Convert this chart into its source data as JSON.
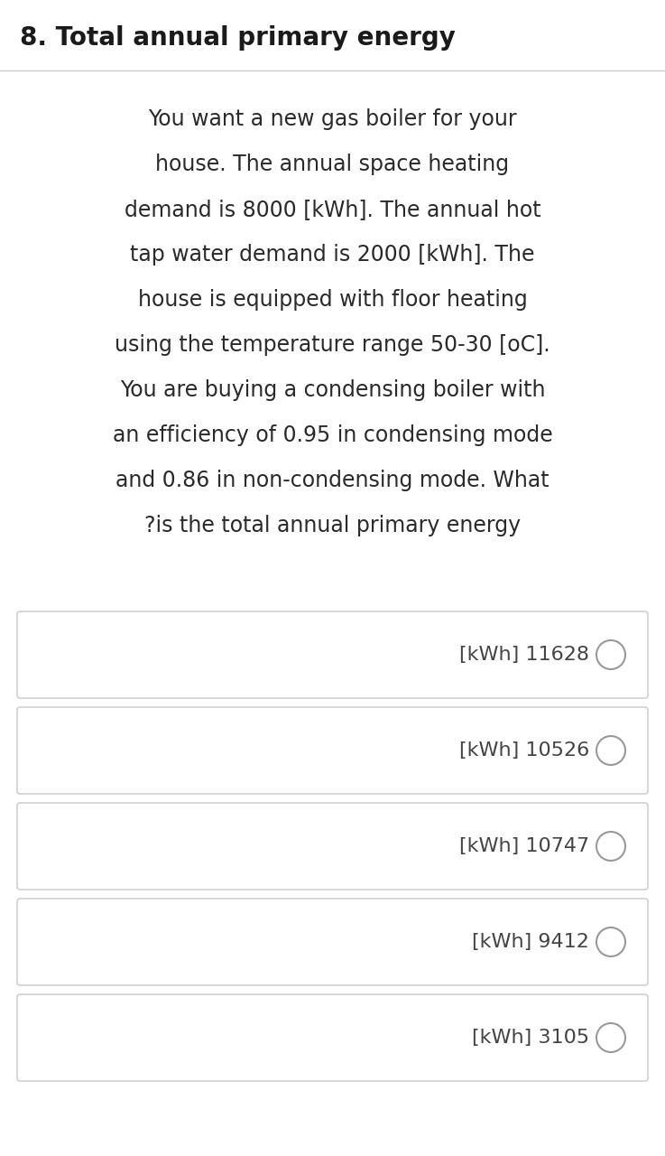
{
  "title": "8. Total annual primary energy",
  "question_lines": [
    "You want a new gas boiler for your",
    "house. The annual space heating",
    "demand is 8000 [kWh]. The annual hot",
    "tap water demand is 2000 [kWh]. The",
    "house is equipped with floor heating",
    "using the temperature range 50-30 [oC].",
    "You are buying a condensing boiler with",
    "an efficiency of 0.95 in condensing mode",
    "and 0.86 in non-condensing mode. What",
    "?is the total annual primary energy"
  ],
  "options": [
    "[kWh] 11628",
    "[kWh] 10526",
    "[kWh] 10747",
    "[kWh] 9412",
    "[kWh] 3105"
  ],
  "bg_color": "#ffffff",
  "title_color": "#1a1a1a",
  "text_color": "#2a2a2a",
  "option_bg": "#ffffff",
  "option_border": "#c8c8c8",
  "option_text_color": "#444444",
  "circle_color": "#999999",
  "title_fontsize": 20,
  "question_fontsize": 17,
  "option_fontsize": 16,
  "fig_width": 7.37,
  "fig_height": 12.8,
  "dpi": 100
}
